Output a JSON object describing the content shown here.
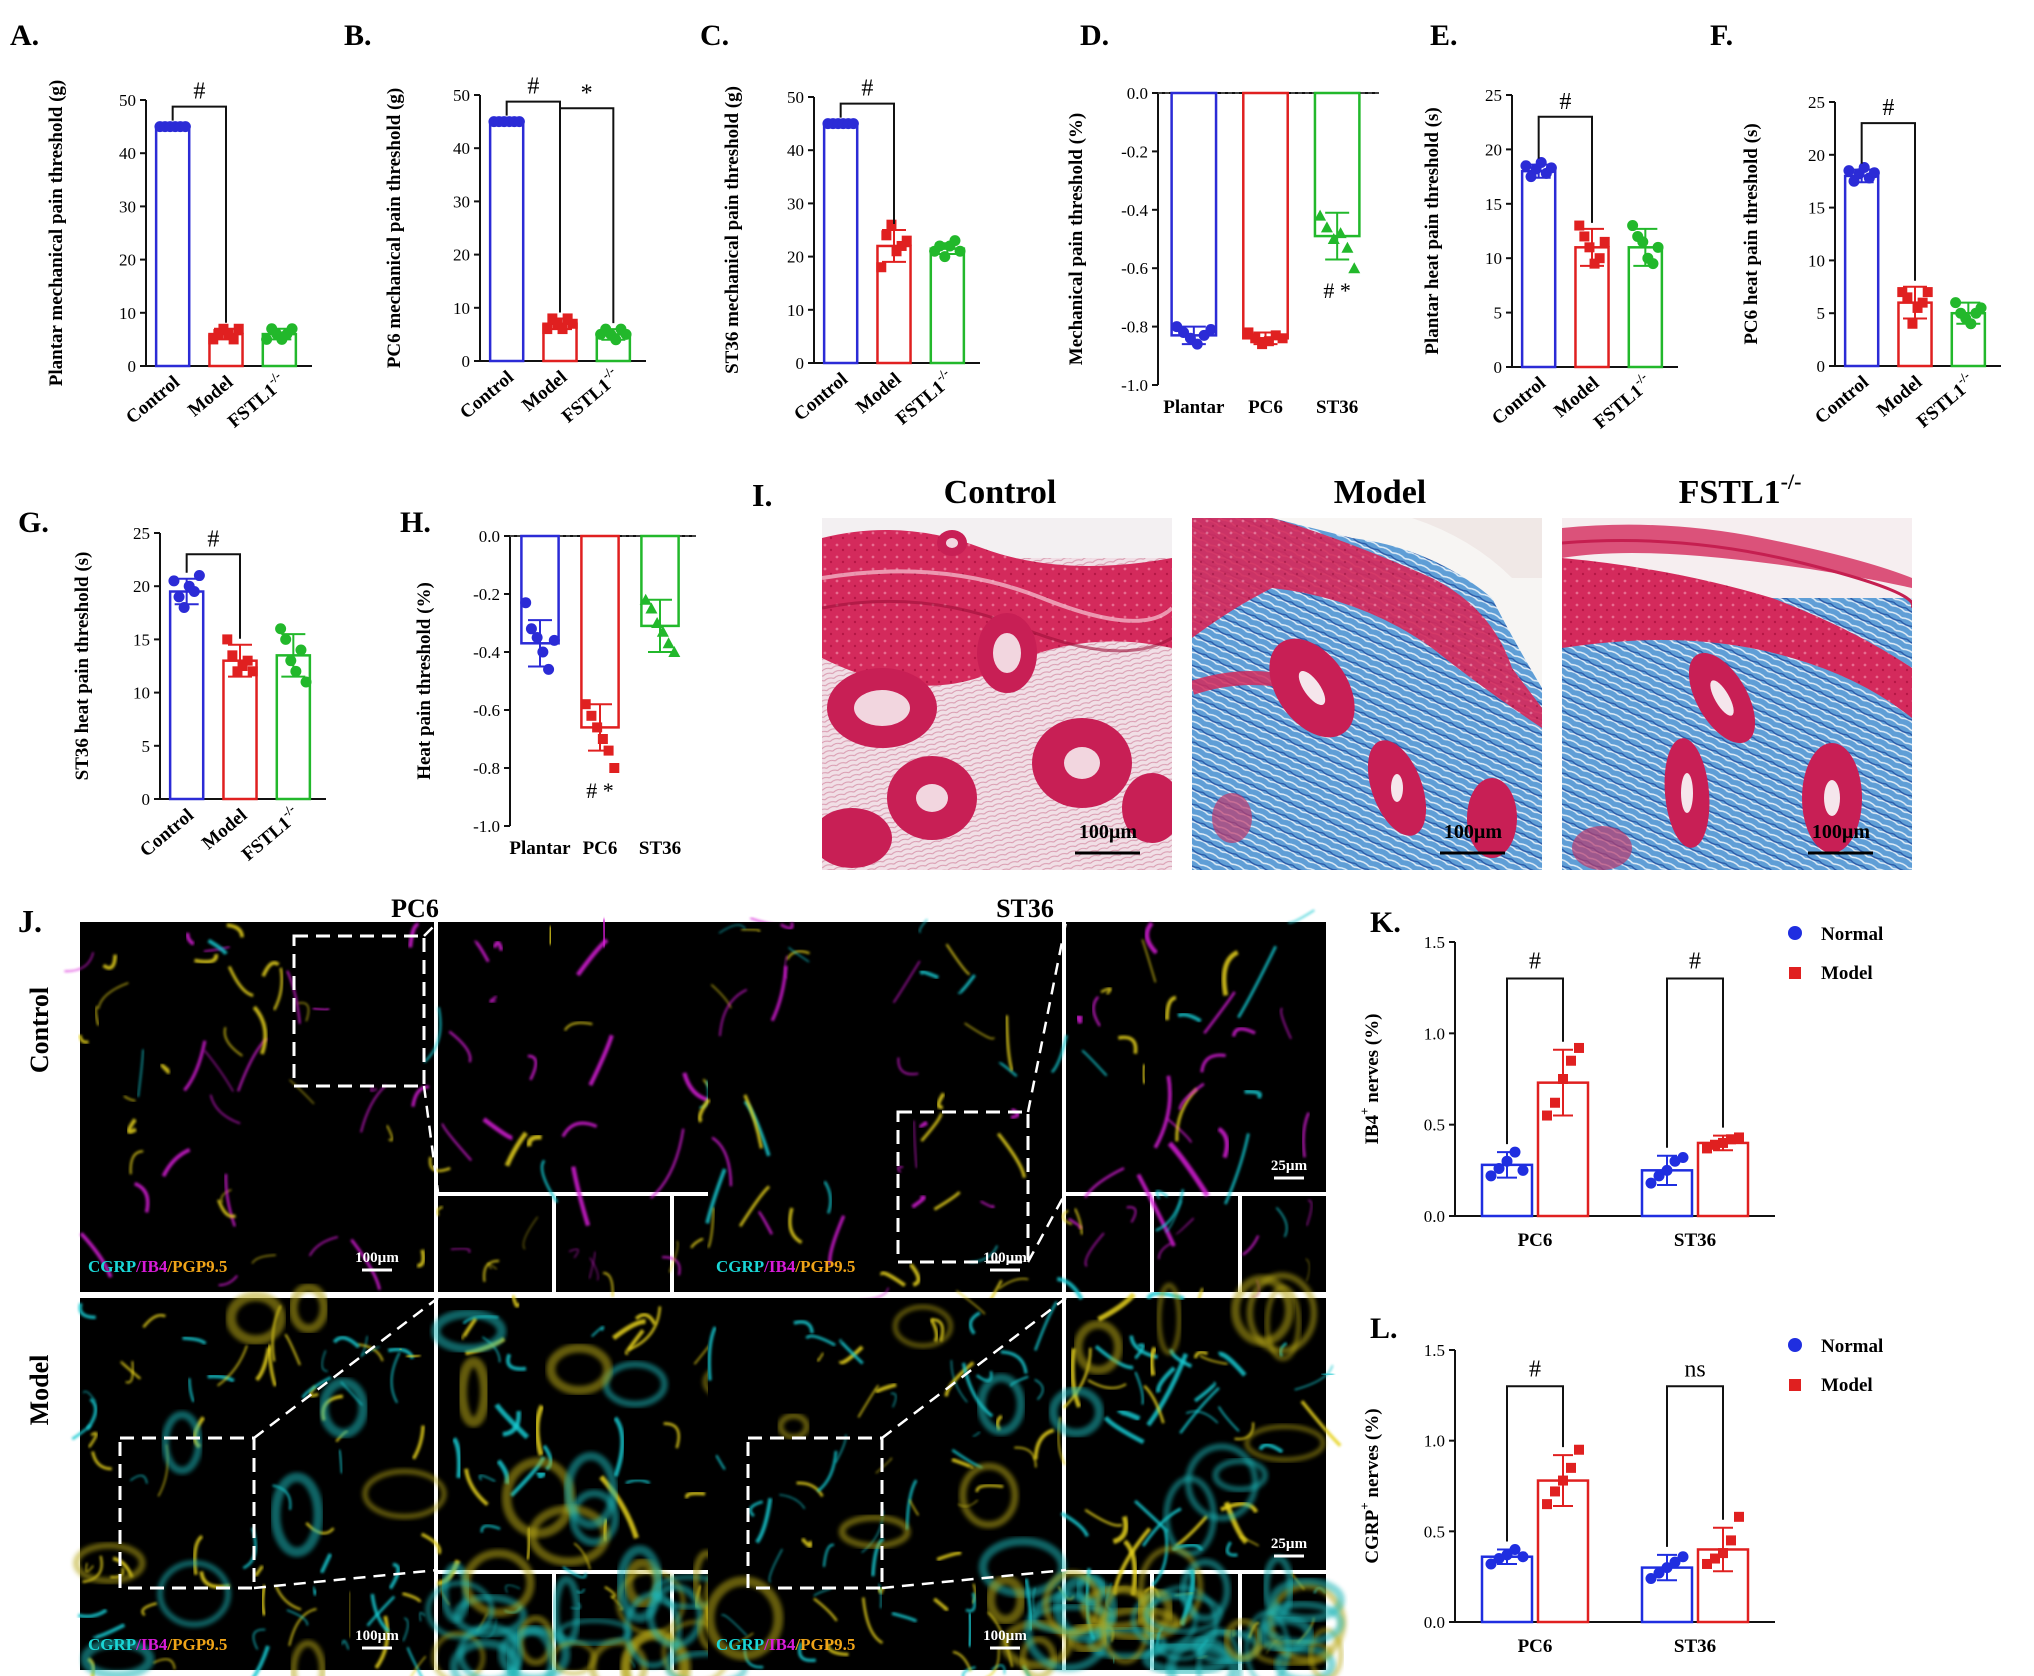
{
  "colors": {
    "control": "#2b2bd6",
    "model": "#e02020",
    "fstl1": "#22b82b",
    "normal": "#1f2ee0",
    "axis": "#111111",
    "cgrp_text": "#1ad6d6",
    "ib4_text": "#d81bd8",
    "pgp_text": "#f0a418",
    "histo_pink": "#d22b5a",
    "histo_blue": "#3f86c4"
  },
  "chart_data": [
    {
      "id": "A",
      "panel_label": "A.",
      "type": "bar",
      "ylabel": "Plantar mechanical pain threshold (g)",
      "ylim": [
        0,
        50
      ],
      "yticks": [
        0,
        10,
        20,
        30,
        40,
        50
      ],
      "categories": [
        "Control",
        "Model",
        "FSTL1-/-"
      ],
      "category_display": [
        [
          "Control",
          ""
        ],
        [
          "Model",
          ""
        ],
        [
          "FSTL1",
          "-/-"
        ]
      ],
      "series": [
        {
          "group": "Control",
          "mean": 45,
          "sd": 0,
          "points": [
            45,
            45,
            45,
            45,
            45,
            45
          ]
        },
        {
          "group": "Model",
          "mean": 6,
          "sd": 1,
          "points": [
            5,
            6,
            7,
            6,
            5,
            7
          ]
        },
        {
          "group": "FSTL1-/-",
          "mean": 6,
          "sd": 1,
          "points": [
            5,
            7,
            6,
            5,
            6,
            7
          ]
        }
      ],
      "annotations": [
        {
          "text": "#",
          "from": 0,
          "to": 1
        }
      ]
    },
    {
      "id": "B",
      "panel_label": "B.",
      "type": "bar",
      "ylabel": "PC6 mechanical pain threshold (g)",
      "ylim": [
        0,
        50
      ],
      "yticks": [
        0,
        10,
        20,
        30,
        40,
        50
      ],
      "categories": [
        "Control",
        "Model",
        "FSTL1-/-"
      ],
      "category_display": [
        [
          "Control",
          ""
        ],
        [
          "Model",
          ""
        ],
        [
          "FSTL1",
          "-/-"
        ]
      ],
      "series": [
        {
          "group": "Control",
          "mean": 45,
          "sd": 0,
          "points": [
            45,
            45,
            45,
            45,
            45,
            45
          ]
        },
        {
          "group": "Model",
          "mean": 7,
          "sd": 1,
          "points": [
            6,
            8,
            7,
            6,
            8,
            7
          ]
        },
        {
          "group": "FSTL1-/-",
          "mean": 5,
          "sd": 1,
          "points": [
            5,
            6,
            5,
            4,
            6,
            5
          ]
        }
      ],
      "annotations": [
        {
          "text": "#",
          "from": 0,
          "to": 1
        },
        {
          "text": "*",
          "from": 1,
          "to": 2
        }
      ]
    },
    {
      "id": "C",
      "panel_label": "C.",
      "type": "bar",
      "ylabel": "ST36 mechanical pain threshold (g)",
      "ylim": [
        0,
        50
      ],
      "yticks": [
        0,
        10,
        20,
        30,
        40,
        50
      ],
      "categories": [
        "Control",
        "Model",
        "FSTL1-/-"
      ],
      "category_display": [
        [
          "Control",
          ""
        ],
        [
          "Model",
          ""
        ],
        [
          "FSTL1",
          "-/-"
        ]
      ],
      "series": [
        {
          "group": "Control",
          "mean": 45,
          "sd": 0,
          "points": [
            45,
            45,
            45,
            45,
            45,
            45
          ]
        },
        {
          "group": "Model",
          "mean": 22,
          "sd": 3,
          "points": [
            18,
            24,
            26,
            21,
            22,
            23
          ]
        },
        {
          "group": "FSTL1-/-",
          "mean": 21.5,
          "sd": 1,
          "points": [
            21,
            22,
            20,
            22,
            23,
            21
          ]
        }
      ],
      "annotations": [
        {
          "text": "#",
          "from": 0,
          "to": 1
        }
      ]
    },
    {
      "id": "D",
      "panel_label": "D.",
      "type": "bar",
      "ylabel": "Mechanical pain threshold (%)",
      "ylim": [
        -1.0,
        0.0
      ],
      "yticks": [
        -1.0,
        -0.8,
        -0.6,
        -0.4,
        -0.2,
        0.0
      ],
      "categories": [
        "Plantar",
        "PC6",
        "ST36"
      ],
      "category_display": [
        [
          "Plantar",
          ""
        ],
        [
          "PC6",
          ""
        ],
        [
          "ST36",
          ""
        ]
      ],
      "series": [
        {
          "group": "Plantar",
          "mean": -0.83,
          "sd": 0.03,
          "points": [
            -0.8,
            -0.82,
            -0.84,
            -0.86,
            -0.83,
            -0.81
          ]
        },
        {
          "group": "PC6",
          "mean": -0.84,
          "sd": 0.02,
          "points": [
            -0.82,
            -0.84,
            -0.86,
            -0.85,
            -0.83,
            -0.84
          ]
        },
        {
          "group": "ST36",
          "mean": -0.49,
          "sd": 0.08,
          "points": [
            -0.42,
            -0.46,
            -0.5,
            -0.48,
            -0.53,
            -0.6
          ]
        }
      ],
      "annotations": [
        {
          "text": "# *",
          "below": 2
        }
      ]
    },
    {
      "id": "E",
      "panel_label": "E.",
      "type": "bar",
      "ylabel": "Plantar heat pain threshold (s)",
      "ylim": [
        0,
        25
      ],
      "yticks": [
        0,
        5,
        10,
        15,
        20,
        25
      ],
      "categories": [
        "Control",
        "Model",
        "FSTL1-/-"
      ],
      "category_display": [
        [
          "Control",
          ""
        ],
        [
          "Model",
          ""
        ],
        [
          "FSTL1",
          "-/-"
        ]
      ],
      "series": [
        {
          "group": "Control",
          "mean": 18,
          "sd": 0.6,
          "points": [
            18.5,
            17.5,
            18.2,
            18.8,
            17.8,
            18.3
          ]
        },
        {
          "group": "Model",
          "mean": 11,
          "sd": 1.7,
          "points": [
            13,
            12,
            11,
            9.5,
            10,
            11.5
          ]
        },
        {
          "group": "FSTL1-/-",
          "mean": 11,
          "sd": 1.7,
          "points": [
            13,
            12,
            11.5,
            10,
            9.5,
            11
          ]
        }
      ],
      "annotations": [
        {
          "text": "#",
          "from": 0,
          "to": 1
        }
      ]
    },
    {
      "id": "F",
      "panel_label": "F.",
      "type": "bar",
      "ylabel": "PC6 heat pain threshold (s)",
      "ylim": [
        0,
        25
      ],
      "yticks": [
        0,
        5,
        10,
        15,
        20,
        25
      ],
      "categories": [
        "Control",
        "Model",
        "FSTL1-/-"
      ],
      "category_display": [
        [
          "Control",
          ""
        ],
        [
          "Model",
          ""
        ],
        [
          "FSTL1",
          "-/-"
        ]
      ],
      "series": [
        {
          "group": "Control",
          "mean": 18,
          "sd": 0.6,
          "points": [
            18.5,
            17.5,
            18.2,
            18.8,
            17.8,
            18.3
          ]
        },
        {
          "group": "Model",
          "mean": 6,
          "sd": 1.5,
          "points": [
            7,
            6.5,
            4,
            5.5,
            6,
            7
          ]
        },
        {
          "group": "FSTL1-/-",
          "mean": 5,
          "sd": 1,
          "points": [
            6,
            5,
            4.5,
            4,
            5,
            5.5
          ]
        }
      ],
      "annotations": [
        {
          "text": "#",
          "from": 0,
          "to": 1
        }
      ]
    },
    {
      "id": "G",
      "panel_label": "G.",
      "type": "bar",
      "ylabel": "ST36 heat pain threshold (s)",
      "ylim": [
        0,
        25
      ],
      "yticks": [
        0,
        5,
        10,
        15,
        20,
        25
      ],
      "categories": [
        "Control",
        "Model",
        "FSTL1-/-"
      ],
      "category_display": [
        [
          "Control",
          ""
        ],
        [
          "Model",
          ""
        ],
        [
          "FSTL1",
          "-/-"
        ]
      ],
      "series": [
        {
          "group": "Control",
          "mean": 19.5,
          "sd": 1.2,
          "points": [
            20.5,
            19,
            18,
            20,
            19.5,
            21
          ]
        },
        {
          "group": "Model",
          "mean": 13,
          "sd": 1.5,
          "points": [
            15,
            13.5,
            12,
            12.5,
            13,
            12
          ]
        },
        {
          "group": "FSTL1-/-",
          "mean": 13.5,
          "sd": 2,
          "points": [
            16,
            15,
            13,
            12,
            14,
            11
          ]
        }
      ],
      "annotations": [
        {
          "text": "#",
          "from": 0,
          "to": 1
        }
      ]
    },
    {
      "id": "H",
      "panel_label": "H.",
      "type": "bar",
      "ylabel": "Heat pain threshold (%)",
      "ylim": [
        -1.0,
        0.0
      ],
      "yticks": [
        -1.0,
        -0.8,
        -0.6,
        -0.4,
        -0.2,
        0.0
      ],
      "categories": [
        "Plantar",
        "PC6",
        "ST36"
      ],
      "category_display": [
        [
          "Plantar",
          ""
        ],
        [
          "PC6",
          ""
        ],
        [
          "ST36",
          ""
        ]
      ],
      "series": [
        {
          "group": "Plantar",
          "mean": -0.37,
          "sd": 0.08,
          "points": [
            -0.23,
            -0.32,
            -0.35,
            -0.4,
            -0.46,
            -0.36
          ]
        },
        {
          "group": "PC6",
          "mean": -0.66,
          "sd": 0.08,
          "points": [
            -0.58,
            -0.62,
            -0.66,
            -0.7,
            -0.74,
            -0.8
          ]
        },
        {
          "group": "ST36",
          "mean": -0.31,
          "sd": 0.09,
          "points": [
            -0.22,
            -0.25,
            -0.3,
            -0.33,
            -0.37,
            -0.4
          ]
        }
      ],
      "annotations": [
        {
          "text": "# *",
          "below": 1
        }
      ]
    },
    {
      "id": "K",
      "panel_label": "K.",
      "type": "bar",
      "ylabel": "IB4+ nerves (%)",
      "ylabel_parts": [
        "IB4",
        "+",
        " nerves (%)"
      ],
      "ylim": [
        0.0,
        1.5
      ],
      "yticks": [
        0.0,
        0.5,
        1.0,
        1.5
      ],
      "categories": [
        "PC6",
        "ST36"
      ],
      "legend": [
        "Normal",
        "Model"
      ],
      "series": [
        {
          "name": "Normal",
          "values": [
            0.28,
            0.25
          ],
          "sd": [
            0.07,
            0.08
          ],
          "points": [
            [
              0.22,
              0.26,
              0.3,
              0.35,
              0.25
            ],
            [
              0.18,
              0.22,
              0.25,
              0.3,
              0.32
            ]
          ]
        },
        {
          "name": "Model",
          "values": [
            0.73,
            0.4
          ],
          "sd": [
            0.18,
            0.04
          ],
          "points": [
            [
              0.55,
              0.62,
              0.75,
              0.85,
              0.92
            ],
            [
              0.37,
              0.39,
              0.4,
              0.42,
              0.43
            ]
          ]
        }
      ],
      "annotations": [
        {
          "text": "#",
          "category": 0
        },
        {
          "text": "#",
          "category": 1
        }
      ]
    },
    {
      "id": "L",
      "panel_label": "L.",
      "type": "bar",
      "ylabel": "CGRP+ nerves (%)",
      "ylabel_parts": [
        "CGRP",
        "+",
        " nerves (%)"
      ],
      "ylim": [
        0.0,
        1.5
      ],
      "yticks": [
        0.0,
        0.5,
        1.0,
        1.5
      ],
      "categories": [
        "PC6",
        "ST36"
      ],
      "legend": [
        "Normal",
        "Model"
      ],
      "series": [
        {
          "name": "Normal",
          "values": [
            0.36,
            0.3
          ],
          "sd": [
            0.04,
            0.07
          ],
          "points": [
            [
              0.32,
              0.35,
              0.37,
              0.4,
              0.36
            ],
            [
              0.24,
              0.27,
              0.3,
              0.33,
              0.36
            ]
          ]
        },
        {
          "name": "Model",
          "values": [
            0.78,
            0.4
          ],
          "sd": [
            0.14,
            0.12
          ],
          "points": [
            [
              0.65,
              0.72,
              0.78,
              0.85,
              0.95
            ],
            [
              0.32,
              0.35,
              0.38,
              0.45,
              0.58
            ]
          ]
        }
      ],
      "annotations": [
        {
          "text": "#",
          "category": 0
        },
        {
          "text": "ns",
          "category": 1
        }
      ]
    }
  ],
  "histology": {
    "panel_label": "I.",
    "images": [
      {
        "title": "Control",
        "title_sup": "",
        "scale_label": "100µm",
        "stain": "control"
      },
      {
        "title": "Model",
        "title_sup": "",
        "scale_label": "100µm",
        "stain": "fibrotic"
      },
      {
        "title": "FSTL1",
        "title_sup": "-/-",
        "scale_label": "100µm",
        "stain": "fibrotic"
      }
    ]
  },
  "immuno": {
    "panel_label": "J.",
    "columns": [
      "PC6",
      "ST36"
    ],
    "rows": [
      "Control",
      "Model"
    ],
    "stain_legend": [
      {
        "text": "CGRP",
        "color": "#1ad6d6"
      },
      {
        "text": "/",
        "color": "#d81bd8"
      },
      {
        "text": "IB4",
        "color": "#d81bd8"
      },
      {
        "text": "/",
        "color": "#f0a418"
      },
      {
        "text": "PGP9.5",
        "color": "#f0a418"
      }
    ],
    "scale_main": "100µm",
    "scale_zoom": "25µm"
  }
}
